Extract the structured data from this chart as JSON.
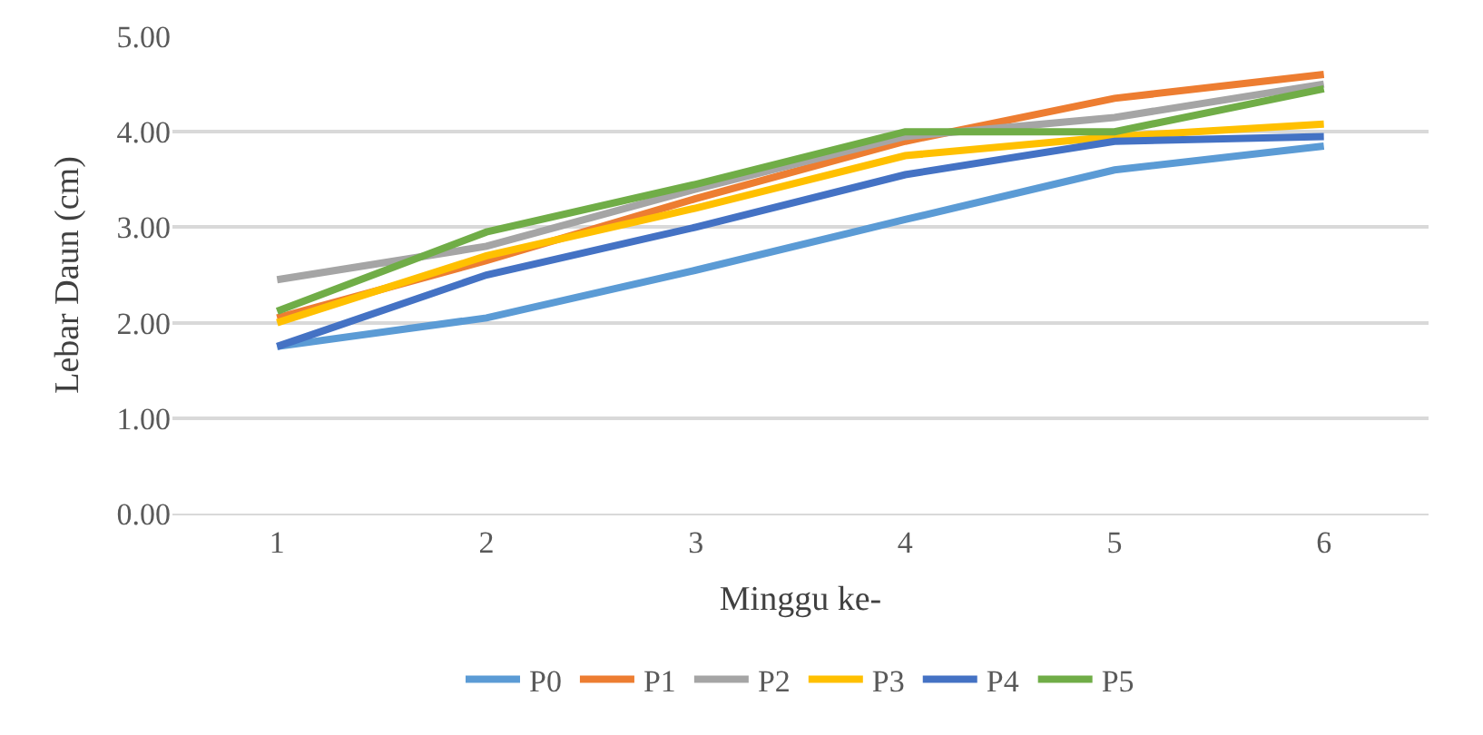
{
  "chart_data": {
    "type": "line",
    "xlabel": "Minggu ke-",
    "ylabel": "Lebar Daun (cm)",
    "categories": [
      "1",
      "2",
      "3",
      "4",
      "5",
      "6"
    ],
    "ylim": [
      0,
      5
    ],
    "yticks": [
      {
        "value": 0,
        "label": "0.00"
      },
      {
        "value": 1,
        "label": "1.00"
      },
      {
        "value": 2,
        "label": "2.00"
      },
      {
        "value": 3,
        "label": "3.00"
      },
      {
        "value": 4,
        "label": "4.00"
      },
      {
        "value": 5,
        "label": "5.00"
      }
    ],
    "grid": "y",
    "legend": "bottom",
    "marker": "none",
    "series": [
      {
        "name": "P0",
        "color": "#5b9bd5",
        "values": [
          1.75,
          2.05,
          2.55,
          3.08,
          3.6,
          3.85
        ]
      },
      {
        "name": "P1",
        "color": "#ed7d31",
        "values": [
          2.05,
          2.65,
          3.3,
          3.9,
          4.35,
          4.6
        ]
      },
      {
        "name": "P2",
        "color": "#a5a5a5",
        "values": [
          2.45,
          2.8,
          3.4,
          3.95,
          4.15,
          4.5
        ]
      },
      {
        "name": "P3",
        "color": "#ffc000",
        "values": [
          2.0,
          2.7,
          3.2,
          3.75,
          3.95,
          4.08
        ]
      },
      {
        "name": "P4",
        "color": "#4472c4",
        "values": [
          1.75,
          2.5,
          3.0,
          3.55,
          3.9,
          3.95
        ]
      },
      {
        "name": "P5",
        "color": "#70ad47",
        "values": [
          2.12,
          2.95,
          3.45,
          4.0,
          4.0,
          4.45
        ]
      }
    ]
  }
}
